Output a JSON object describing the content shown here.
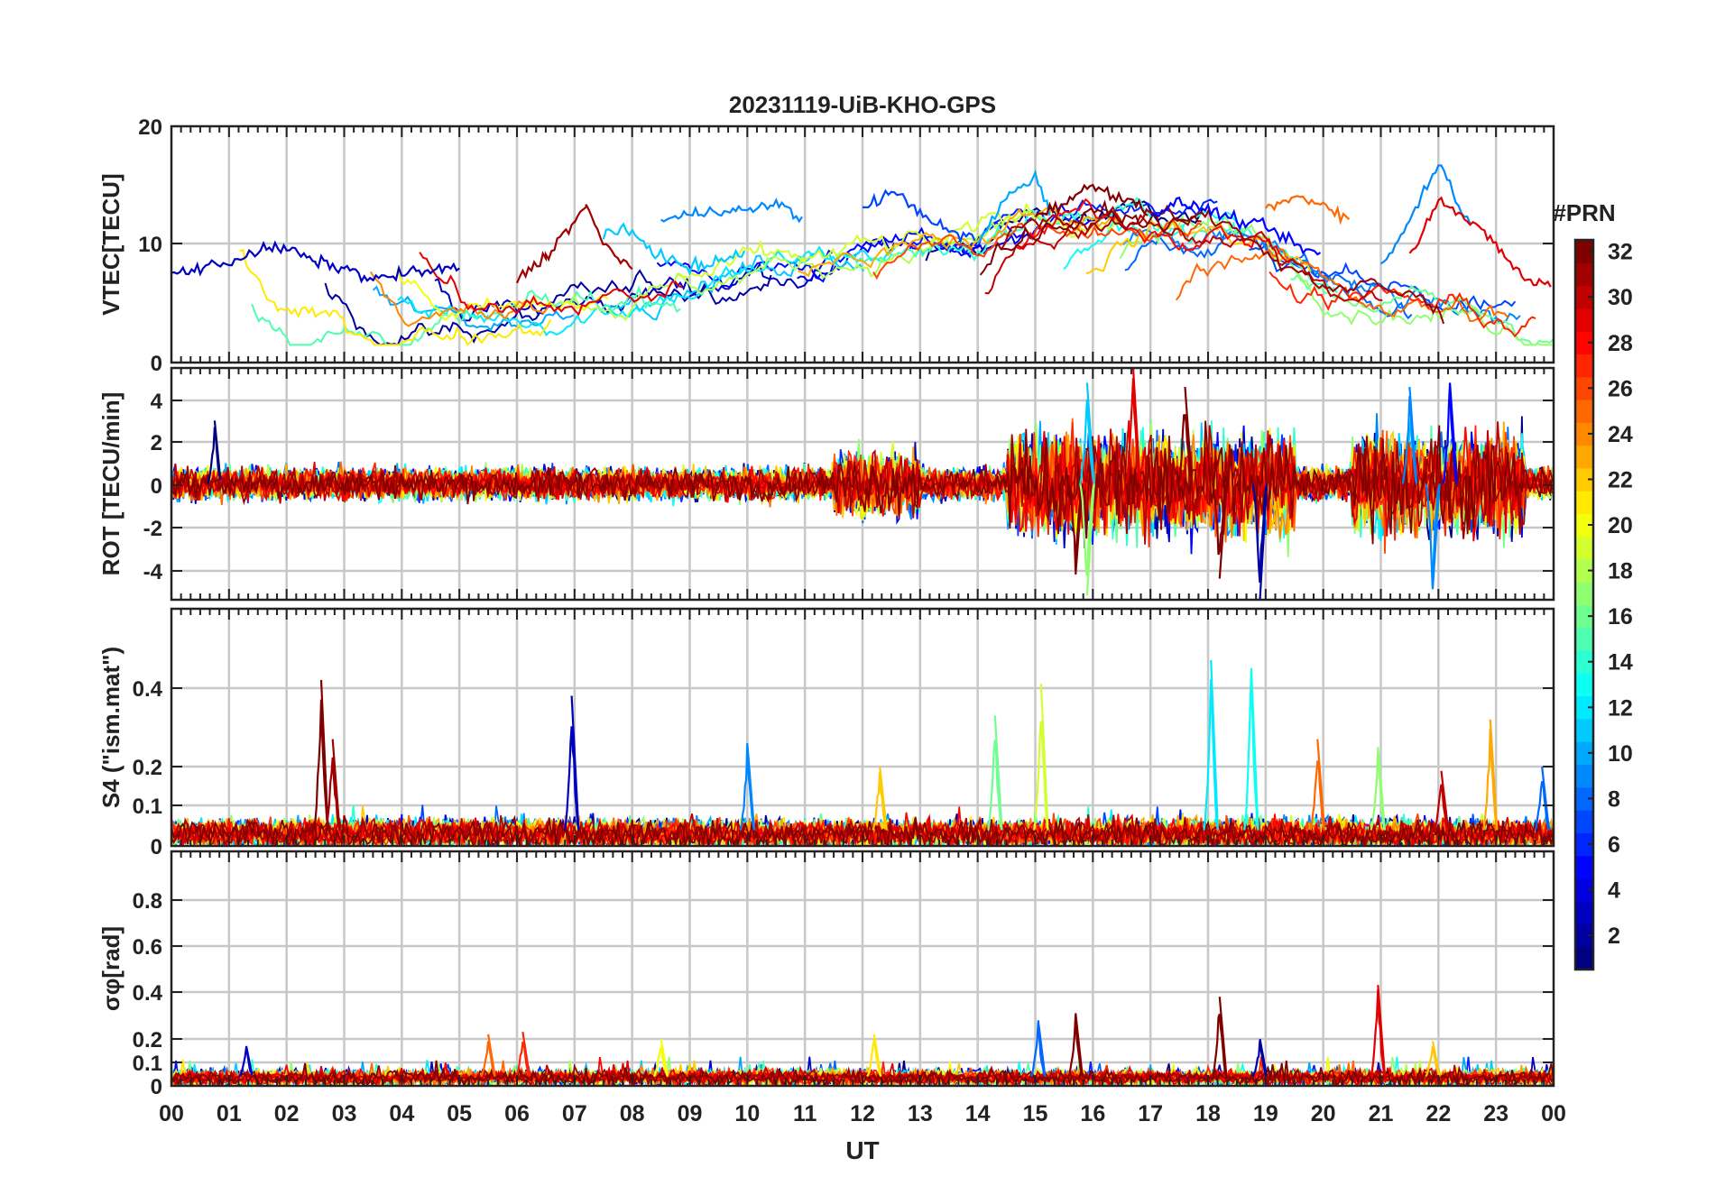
{
  "title": "20231119-UiB-KHO-GPS",
  "xlabel": "UT",
  "x_tick_labels": [
    "00",
    "01",
    "02",
    "03",
    "04",
    "05",
    "06",
    "07",
    "08",
    "09",
    "10",
    "11",
    "12",
    "13",
    "14",
    "15",
    "16",
    "17",
    "18",
    "19",
    "20",
    "21",
    "22",
    "23",
    "00"
  ],
  "colorbar": {
    "title": "#PRN",
    "tick_labels": [
      "2",
      "4",
      "6",
      "8",
      "10",
      "12",
      "14",
      "16",
      "18",
      "20",
      "22",
      "24",
      "26",
      "28",
      "30",
      "32"
    ],
    "range": [
      1,
      32
    ],
    "colormap": "jet",
    "colors": [
      "#00008f",
      "#0000ff",
      "#0080ff",
      "#00ffff",
      "#80ff80",
      "#ffff00",
      "#ff8000",
      "#ff0000",
      "#800000"
    ]
  },
  "chart_data": [
    {
      "type": "line",
      "name": "vtec",
      "ylabel": "VTEC[TECU]",
      "ylim": [
        0,
        20
      ],
      "y_tick_labels": [
        "0",
        "10",
        "20"
      ],
      "xlim_hours": [
        0,
        24
      ],
      "grid": true,
      "series_count": 32,
      "series": [
        {
          "prn": 3,
          "points": [
            [
              0,
              7.5
            ],
            [
              1,
              8.5
            ],
            [
              1.5,
              9.5
            ],
            [
              2,
              9.7
            ],
            [
              2.5,
              8.5
            ],
            [
              3,
              8
            ],
            [
              3.5,
              7
            ],
            [
              4,
              7.5
            ],
            [
              5,
              8
            ]
          ]
        },
        {
          "prn": 31,
          "points": [
            [
              6,
              7
            ],
            [
              6.5,
              9
            ],
            [
              7,
              12
            ],
            [
              7.2,
              13.2
            ],
            [
              7.5,
              10
            ],
            [
              8,
              8
            ]
          ]
        },
        {
          "prn": 11,
          "points": [
            [
              7.5,
              11
            ],
            [
              8,
              11
            ],
            [
              8.5,
              9
            ],
            [
              9,
              8
            ],
            [
              9.5,
              8.5
            ],
            [
              10,
              9.5
            ]
          ]
        },
        {
          "prn": 9,
          "points": [
            [
              8.5,
              12
            ],
            [
              9,
              12.5
            ],
            [
              9.5,
              13
            ],
            [
              10,
              12.8
            ],
            [
              10.5,
              13.5
            ],
            [
              11,
              12
            ]
          ]
        },
        {
          "prn": 7,
          "points": [
            [
              12,
              13
            ],
            [
              12.5,
              14.5
            ],
            [
              13,
              12.8
            ],
            [
              13.5,
              11
            ],
            [
              14,
              10.5
            ]
          ]
        },
        {
          "prn": 10,
          "points": [
            [
              14,
              10
            ],
            [
              14.5,
              14
            ],
            [
              15,
              15.8
            ],
            [
              15.3,
              12
            ]
          ]
        },
        {
          "prn": 32,
          "points": [
            [
              15,
              12.5
            ],
            [
              15.5,
              13.5
            ],
            [
              16,
              15
            ],
            [
              16.5,
              14
            ],
            [
              17,
              12.8
            ]
          ]
        },
        {
          "prn": 5,
          "points": [
            [
              17,
              12.5
            ],
            [
              17.5,
              13.5
            ],
            [
              18,
              13
            ],
            [
              18.5,
              12
            ],
            [
              19,
              11.5
            ],
            [
              19.5,
              10
            ],
            [
              20,
              9
            ]
          ]
        },
        {
          "prn": 25,
          "points": [
            [
              19,
              13
            ],
            [
              19.5,
              14
            ],
            [
              20,
              13.5
            ],
            [
              20.5,
              12
            ]
          ]
        },
        {
          "prn": 9,
          "points": [
            [
              21,
              8
            ],
            [
              21.5,
              12
            ],
            [
              22,
              17
            ],
            [
              22.3,
              14
            ],
            [
              22.6,
              11
            ]
          ]
        },
        {
          "prn": 29,
          "points": [
            [
              21.5,
              9
            ],
            [
              22,
              14
            ],
            [
              22.5,
              12
            ],
            [
              23,
              10
            ],
            [
              23.5,
              7
            ],
            [
              24,
              6.5
            ]
          ]
        }
      ]
    },
    {
      "type": "line",
      "name": "rot",
      "ylabel": "ROT [TECU/min]",
      "ylim": [
        -5.5,
        5.5
      ],
      "y_tick_labels": [
        "-4",
        "-2",
        "0",
        "2",
        "4"
      ],
      "xlim_hours": [
        0,
        24
      ],
      "grid": true,
      "spikes": [
        {
          "prn": 1,
          "t": 0.75,
          "v": 3
        },
        {
          "prn": 32,
          "t": 15.7,
          "v": -4.3
        },
        {
          "prn": 11,
          "t": 15.9,
          "v": 4.8
        },
        {
          "prn": 17,
          "t": 15.9,
          "v": -5.3
        },
        {
          "prn": 29,
          "t": 16.7,
          "v": 5.5
        },
        {
          "prn": 32,
          "t": 17.6,
          "v": 4.6
        },
        {
          "prn": 32,
          "t": 18.2,
          "v": -4.5
        },
        {
          "prn": 2,
          "t": 18.9,
          "v": -5.5
        },
        {
          "prn": 9,
          "t": 21.5,
          "v": 4.6
        },
        {
          "prn": 9,
          "t": 21.9,
          "v": -5
        },
        {
          "prn": 5,
          "t": 22.2,
          "v": 4.8
        }
      ]
    },
    {
      "type": "line",
      "name": "s4",
      "ylabel": "S4 (\"ism.mat\")",
      "ylim": [
        0,
        0.6
      ],
      "y_tick_labels": [
        "0",
        "0.1",
        "0.2",
        "0.4"
      ],
      "xlim_hours": [
        0,
        24
      ],
      "grid": true,
      "spikes": [
        {
          "prn": 32,
          "t": 2.6,
          "v": 0.42
        },
        {
          "prn": 31,
          "t": 2.8,
          "v": 0.27
        },
        {
          "prn": 3,
          "t": 6.95,
          "v": 0.38
        },
        {
          "prn": 9,
          "t": 10,
          "v": 0.26
        },
        {
          "prn": 22,
          "t": 12.3,
          "v": 0.2
        },
        {
          "prn": 16,
          "t": 14.3,
          "v": 0.33
        },
        {
          "prn": 19,
          "t": 15.1,
          "v": 0.41
        },
        {
          "prn": 12,
          "t": 18.05,
          "v": 0.47
        },
        {
          "prn": 13,
          "t": 18.75,
          "v": 0.45
        },
        {
          "prn": 25,
          "t": 19.9,
          "v": 0.27
        },
        {
          "prn": 17,
          "t": 20.95,
          "v": 0.25
        },
        {
          "prn": 30,
          "t": 22.05,
          "v": 0.19
        },
        {
          "prn": 23,
          "t": 22.9,
          "v": 0.32
        },
        {
          "prn": 8,
          "t": 23.8,
          "v": 0.2
        }
      ]
    },
    {
      "type": "line",
      "name": "sigma_phi",
      "ylabel": "σφ[rad]",
      "ylim": [
        0,
        1
      ],
      "y_tick_labels": [
        "0",
        "0.1",
        "0.2",
        "0.4",
        "0.6",
        "0.8"
      ],
      "xlim_hours": [
        0,
        24
      ],
      "grid": true,
      "spikes": [
        {
          "prn": 3,
          "t": 1.3,
          "v": 0.17
        },
        {
          "prn": 25,
          "t": 5.5,
          "v": 0.22
        },
        {
          "prn": 27,
          "t": 6.1,
          "v": 0.23
        },
        {
          "prn": 20,
          "t": 8.5,
          "v": 0.2
        },
        {
          "prn": 21,
          "t": 12.2,
          "v": 0.22
        },
        {
          "prn": 8,
          "t": 15.05,
          "v": 0.28
        },
        {
          "prn": 32,
          "t": 15.7,
          "v": 0.31
        },
        {
          "prn": 32,
          "t": 18.2,
          "v": 0.38
        },
        {
          "prn": 2,
          "t": 18.9,
          "v": 0.2
        },
        {
          "prn": 29,
          "t": 20.95,
          "v": 0.43
        },
        {
          "prn": 22,
          "t": 21.9,
          "v": 0.19
        }
      ]
    }
  ]
}
